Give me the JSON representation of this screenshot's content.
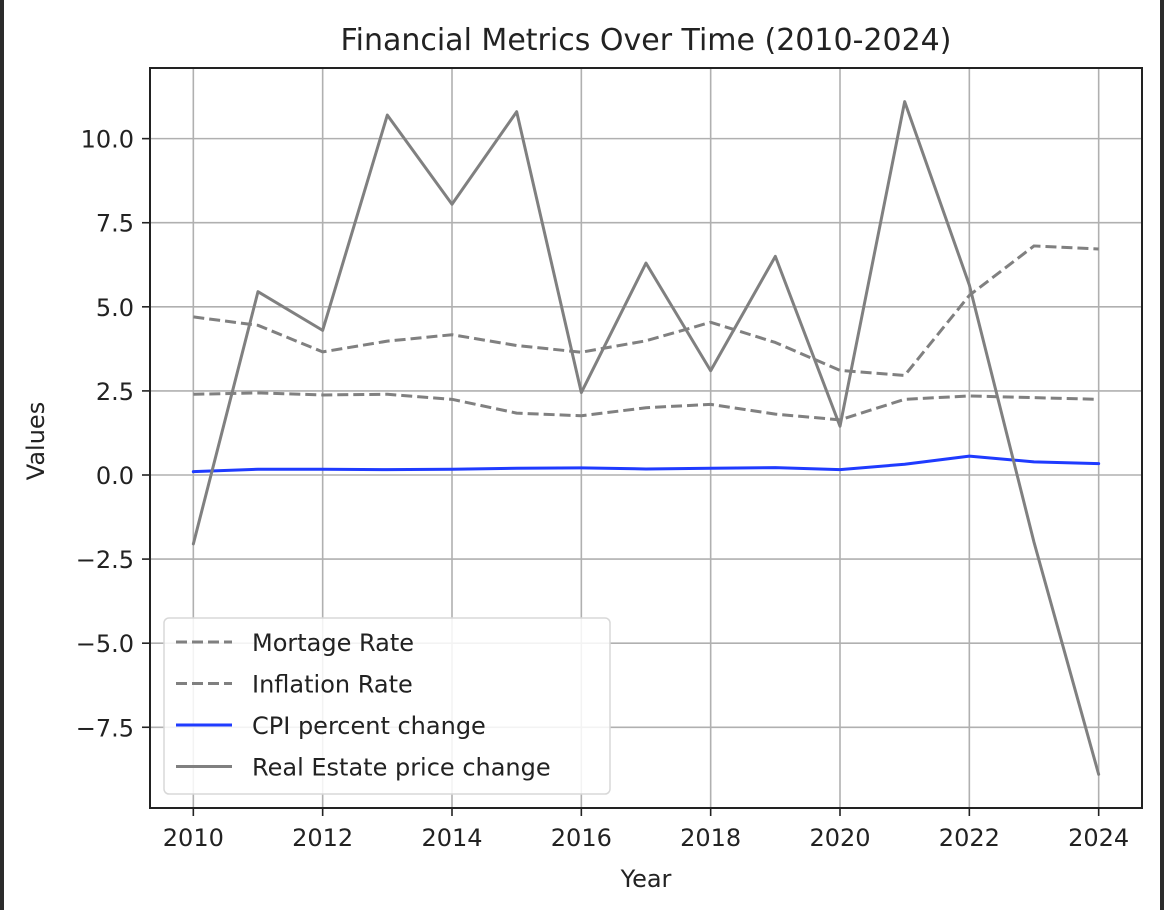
{
  "chart_data": {
    "type": "line",
    "title": "Financial Metrics Over Time (2010-2024)",
    "xlabel": "Year",
    "ylabel": "Values",
    "xlim": [
      2009.33,
      2024.67
    ],
    "ylim": [
      -9.9,
      12.1
    ],
    "x": [
      2010,
      2011,
      2012,
      2013,
      2014,
      2015,
      2016,
      2017,
      2018,
      2019,
      2020,
      2021,
      2022,
      2023,
      2024
    ],
    "x_ticks": [
      2010,
      2012,
      2014,
      2016,
      2018,
      2020,
      2022,
      2024
    ],
    "x_tick_labels": [
      "2010",
      "2012",
      "2014",
      "2016",
      "2018",
      "2020",
      "2022",
      "2024"
    ],
    "y_ticks": [
      -7.5,
      -5.0,
      -2.5,
      0.0,
      2.5,
      5.0,
      7.5,
      10.0
    ],
    "y_tick_labels": [
      "−7.5",
      "−5.0",
      "−2.5",
      "0.0",
      "2.5",
      "5.0",
      "7.5",
      "10.0"
    ],
    "grid": true,
    "legend_position": "lower-left",
    "series": [
      {
        "name": "Mortage Rate",
        "style": "dashed",
        "color": "#808080",
        "values": [
          4.7,
          4.45,
          3.66,
          3.98,
          4.17,
          3.85,
          3.65,
          3.99,
          4.54,
          3.94,
          3.11,
          2.96,
          5.34,
          6.81,
          6.72
        ]
      },
      {
        "name": "Inflation Rate",
        "style": "dashed",
        "color": "#808080",
        "values": [
          2.4,
          2.44,
          2.38,
          2.4,
          2.25,
          1.84,
          1.76,
          2.0,
          2.1,
          1.81,
          1.64,
          2.25,
          2.35,
          2.3,
          2.25
        ]
      },
      {
        "name": "CPI percent change",
        "style": "solid",
        "color": "#1f3bff",
        "values": [
          0.1,
          0.17,
          0.17,
          0.16,
          0.17,
          0.2,
          0.21,
          0.18,
          0.2,
          0.22,
          0.16,
          0.32,
          0.56,
          0.39,
          0.34
        ]
      },
      {
        "name": "Real Estate price change",
        "style": "solid",
        "color": "#808080",
        "values": [
          -2.05,
          5.45,
          4.3,
          10.7,
          8.05,
          10.8,
          2.45,
          6.3,
          3.1,
          6.5,
          1.45,
          11.1,
          5.65,
          -2.0,
          -8.9
        ]
      }
    ]
  }
}
